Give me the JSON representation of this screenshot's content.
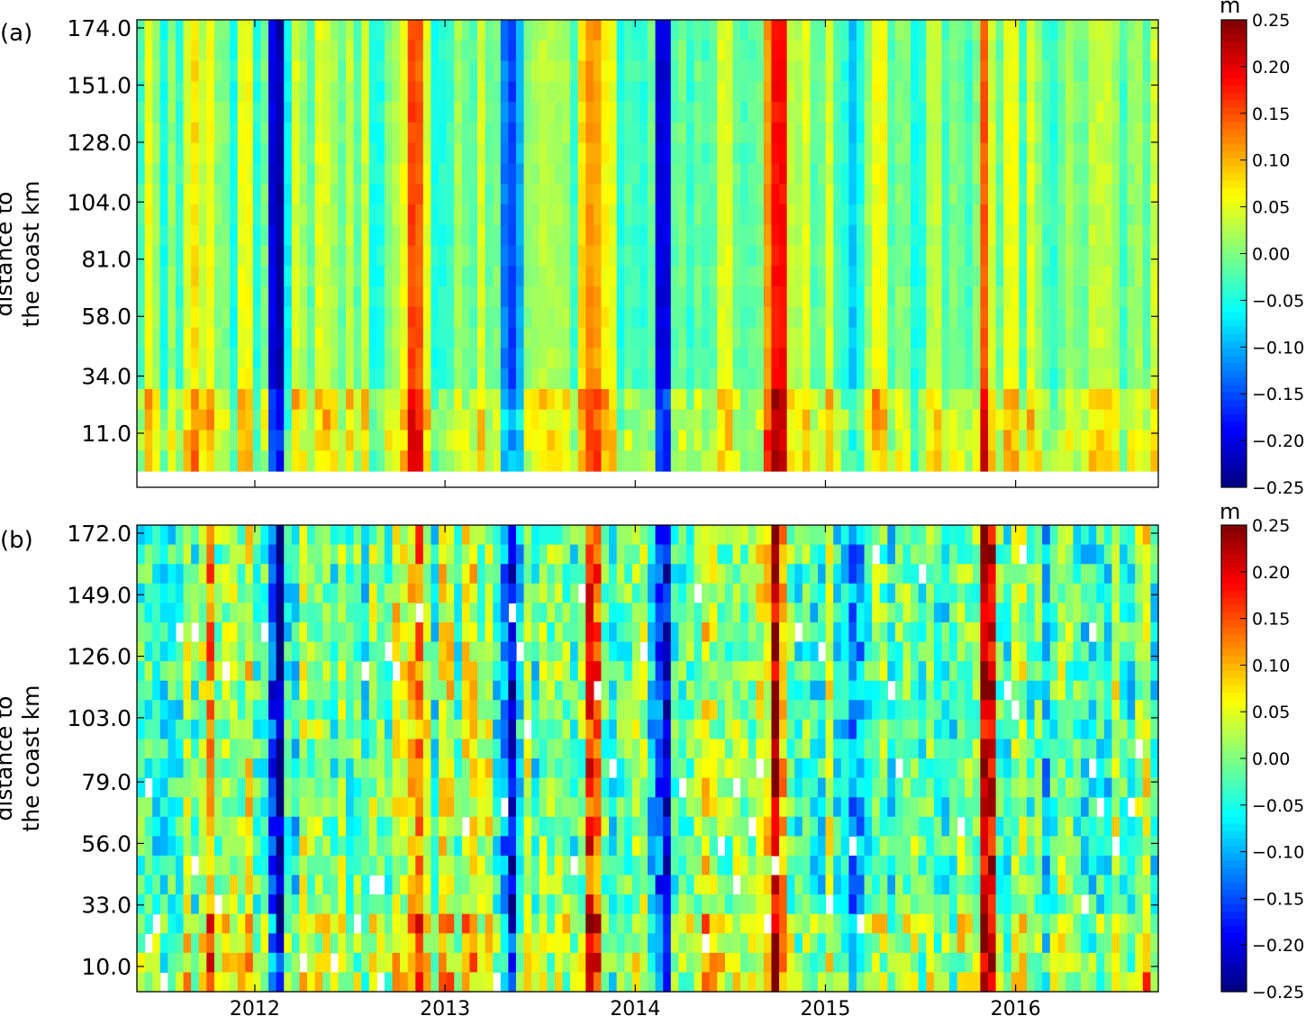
{
  "chart_data": [
    {
      "type": "heatmap",
      "panel_label": "(a)",
      "ylabel_line1": "distance to",
      "ylabel_line2": "the coast km",
      "yticks": [
        "174.0",
        "151.0",
        "128.0",
        "104.0",
        "81.0",
        "58.0",
        "34.0",
        "11.0"
      ],
      "ytick_values": [
        174,
        151,
        128,
        104,
        81,
        58,
        34,
        11
      ],
      "ylim": [
        -5,
        176
      ],
      "x_range": [
        2011.38,
        2016.75
      ],
      "xticks": [
        2012,
        2013,
        2014,
        2015,
        2016
      ],
      "xtick_labels_visible": false,
      "colorbar": {
        "unit": "m",
        "ticks": [
          "0.25",
          "0.20",
          "0.15",
          "0.10",
          "0.05",
          "0.00",
          "−0.05",
          "−0.10",
          "−0.15",
          "−0.20",
          "−0.25"
        ],
        "range": [
          -0.25,
          0.25
        ],
        "colormap": "jet"
      },
      "features": [
        {
          "x": 2011.75,
          "value": 0.1
        },
        {
          "x": 2012.12,
          "value": -0.22
        },
        {
          "x": 2012.85,
          "value": 0.14
        },
        {
          "x": 2013.35,
          "value": -0.15
        },
        {
          "x": 2013.78,
          "value": 0.15
        },
        {
          "x": 2014.15,
          "value": -0.24
        },
        {
          "x": 2014.75,
          "value": 0.18
        },
        {
          "x": 2015.15,
          "value": -0.12
        },
        {
          "x": 2015.85,
          "value": 0.12
        },
        {
          "x": 2016.2,
          "value": -0.05
        }
      ]
    },
    {
      "type": "heatmap",
      "panel_label": "(b)",
      "ylabel_line1": "distance to",
      "ylabel_line2": "the coast km",
      "yticks": [
        "172.0",
        "149.0",
        "126.0",
        "103.0",
        "79.0",
        "56.0",
        "33.0",
        "10.0"
      ],
      "ytick_values": [
        172,
        149,
        126,
        103,
        79,
        56,
        33,
        10
      ],
      "ylim": [
        2,
        174
      ],
      "x_range": [
        2011.38,
        2016.75
      ],
      "xticks": [
        2012,
        2013,
        2014,
        2015,
        2016
      ],
      "xtick_labels": [
        "2012",
        "2013",
        "2014",
        "2015",
        "2016"
      ],
      "colorbar": {
        "unit": "m",
        "ticks": [
          "0.25",
          "0.20",
          "0.15",
          "0.10",
          "0.05",
          "0.00",
          "−0.05",
          "−0.10",
          "−0.15",
          "−0.20",
          "−0.25"
        ],
        "range": [
          -0.25,
          0.25
        ],
        "colormap": "jet"
      },
      "features": [
        {
          "x": 2011.75,
          "value": 0.1
        },
        {
          "x": 2012.12,
          "value": -0.22
        },
        {
          "x": 2012.85,
          "value": 0.14
        },
        {
          "x": 2013.35,
          "value": -0.18
        },
        {
          "x": 2013.78,
          "value": 0.16
        },
        {
          "x": 2014.15,
          "value": -0.2
        },
        {
          "x": 2014.75,
          "value": 0.2
        },
        {
          "x": 2015.15,
          "value": -0.16
        },
        {
          "x": 2015.85,
          "value": 0.2
        },
        {
          "x": 2016.2,
          "value": -0.08
        }
      ]
    }
  ]
}
